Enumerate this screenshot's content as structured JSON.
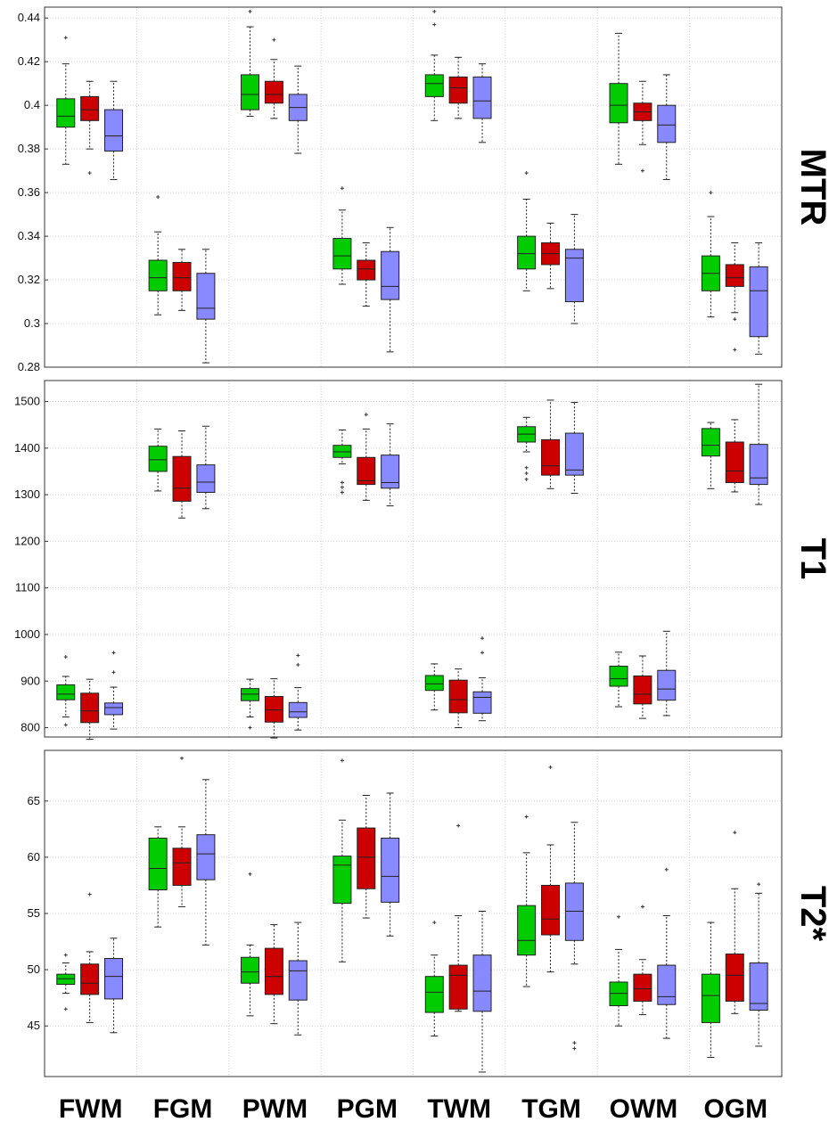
{
  "chart_data": [
    {
      "type": "box",
      "panel": "MTR",
      "row_label": "MTR",
      "categories": [
        "FWM",
        "FGM",
        "PWM",
        "PGM",
        "TWM",
        "TGM",
        "OWM",
        "OGM"
      ],
      "ylim": [
        0.28,
        0.445
      ],
      "yticks": [
        0.28,
        0.3,
        0.32,
        0.34,
        0.36,
        0.38,
        0.4,
        0.42,
        0.44
      ],
      "ytick_labels": [
        "0.28",
        "0.3",
        "0.32",
        "0.34",
        "0.36",
        "0.38",
        "0.4",
        "0.42",
        "0.44"
      ],
      "grid": true,
      "series": [
        {
          "color": "#00cc00",
          "boxes": [
            {
              "whisker_low": 0.373,
              "q1": 0.39,
              "median": 0.395,
              "q3": 0.403,
              "whisker_high": 0.419,
              "outliers": [
                0.431
              ]
            },
            {
              "whisker_low": 0.304,
              "q1": 0.315,
              "median": 0.321,
              "q3": 0.329,
              "whisker_high": 0.342,
              "outliers": [
                0.358
              ]
            },
            {
              "whisker_low": 0.395,
              "q1": 0.398,
              "median": 0.405,
              "q3": 0.414,
              "whisker_high": 0.436,
              "outliers": [
                0.443
              ]
            },
            {
              "whisker_low": 0.318,
              "q1": 0.325,
              "median": 0.331,
              "q3": 0.339,
              "whisker_high": 0.352,
              "outliers": [
                0.362
              ]
            },
            {
              "whisker_low": 0.393,
              "q1": 0.404,
              "median": 0.41,
              "q3": 0.414,
              "whisker_high": 0.423,
              "outliers": [
                0.437,
                0.443
              ]
            },
            {
              "whisker_low": 0.315,
              "q1": 0.325,
              "median": 0.332,
              "q3": 0.34,
              "whisker_high": 0.357,
              "outliers": [
                0.369
              ]
            },
            {
              "whisker_low": 0.373,
              "q1": 0.392,
              "median": 0.4,
              "q3": 0.41,
              "whisker_high": 0.433,
              "outliers": []
            },
            {
              "whisker_low": 0.303,
              "q1": 0.315,
              "median": 0.323,
              "q3": 0.331,
              "whisker_high": 0.349,
              "outliers": [
                0.36
              ]
            }
          ]
        },
        {
          "color": "#cc0000",
          "boxes": [
            {
              "whisker_low": 0.38,
              "q1": 0.393,
              "median": 0.398,
              "q3": 0.404,
              "whisker_high": 0.411,
              "outliers": [
                0.369
              ]
            },
            {
              "whisker_low": 0.306,
              "q1": 0.315,
              "median": 0.321,
              "q3": 0.328,
              "whisker_high": 0.334,
              "outliers": []
            },
            {
              "whisker_low": 0.394,
              "q1": 0.401,
              "median": 0.405,
              "q3": 0.411,
              "whisker_high": 0.421,
              "outliers": [
                0.43
              ]
            },
            {
              "whisker_low": 0.308,
              "q1": 0.32,
              "median": 0.325,
              "q3": 0.329,
              "whisker_high": 0.337,
              "outliers": []
            },
            {
              "whisker_low": 0.394,
              "q1": 0.401,
              "median": 0.408,
              "q3": 0.413,
              "whisker_high": 0.422,
              "outliers": []
            },
            {
              "whisker_low": 0.316,
              "q1": 0.327,
              "median": 0.332,
              "q3": 0.337,
              "whisker_high": 0.346,
              "outliers": []
            },
            {
              "whisker_low": 0.382,
              "q1": 0.393,
              "median": 0.397,
              "q3": 0.401,
              "whisker_high": 0.411,
              "outliers": [
                0.37
              ]
            },
            {
              "whisker_low": 0.305,
              "q1": 0.317,
              "median": 0.321,
              "q3": 0.327,
              "whisker_high": 0.337,
              "outliers": [
                0.302,
                0.288
              ]
            }
          ]
        },
        {
          "color": "#8888ff",
          "boxes": [
            {
              "whisker_low": 0.366,
              "q1": 0.379,
              "median": 0.386,
              "q3": 0.398,
              "whisker_high": 0.411,
              "outliers": []
            },
            {
              "whisker_low": 0.282,
              "q1": 0.302,
              "median": 0.307,
              "q3": 0.323,
              "whisker_high": 0.334,
              "outliers": []
            },
            {
              "whisker_low": 0.378,
              "q1": 0.393,
              "median": 0.399,
              "q3": 0.405,
              "whisker_high": 0.418,
              "outliers": []
            },
            {
              "whisker_low": 0.287,
              "q1": 0.311,
              "median": 0.317,
              "q3": 0.333,
              "whisker_high": 0.344,
              "outliers": []
            },
            {
              "whisker_low": 0.383,
              "q1": 0.394,
              "median": 0.402,
              "q3": 0.413,
              "whisker_high": 0.419,
              "outliers": []
            },
            {
              "whisker_low": 0.3,
              "q1": 0.31,
              "median": 0.33,
              "q3": 0.334,
              "whisker_high": 0.35,
              "outliers": []
            },
            {
              "whisker_low": 0.366,
              "q1": 0.383,
              "median": 0.391,
              "q3": 0.4,
              "whisker_high": 0.414,
              "outliers": []
            },
            {
              "whisker_low": 0.286,
              "q1": 0.294,
              "median": 0.315,
              "q3": 0.326,
              "whisker_high": 0.337,
              "outliers": []
            }
          ]
        }
      ]
    },
    {
      "type": "box",
      "panel": "T1",
      "row_label": "T1",
      "categories": [
        "FWM",
        "FGM",
        "PWM",
        "PGM",
        "TWM",
        "TGM",
        "OWM",
        "OGM"
      ],
      "ylim": [
        780,
        1545
      ],
      "yticks": [
        800,
        900,
        1000,
        1100,
        1200,
        1300,
        1400,
        1500
      ],
      "ytick_labels": [
        "800",
        "900",
        "1000",
        "1100",
        "1200",
        "1300",
        "1400",
        "1500"
      ],
      "grid": true,
      "series": [
        {
          "color": "#00cc00",
          "boxes": [
            {
              "whisker_low": 823,
              "q1": 860,
              "median": 872,
              "q3": 892,
              "whisker_high": 910,
              "outliers": [
                952,
                806
              ]
            },
            {
              "whisker_low": 1308,
              "q1": 1350,
              "median": 1375,
              "q3": 1404,
              "whisker_high": 1441,
              "outliers": []
            },
            {
              "whisker_low": 823,
              "q1": 858,
              "median": 872,
              "q3": 884,
              "whisker_high": 904,
              "outliers": [
                800
              ]
            },
            {
              "whisker_low": 1366,
              "q1": 1380,
              "median": 1392,
              "q3": 1406,
              "whisker_high": 1439,
              "outliers": [
                1326,
                1316,
                1305
              ]
            },
            {
              "whisker_low": 838,
              "q1": 880,
              "median": 894,
              "q3": 912,
              "whisker_high": 937,
              "outliers": []
            },
            {
              "whisker_low": 1392,
              "q1": 1413,
              "median": 1430,
              "q3": 1446,
              "whisker_high": 1466,
              "outliers": [
                1358,
                1346,
                1333
              ]
            },
            {
              "whisker_low": 845,
              "q1": 889,
              "median": 905,
              "q3": 932,
              "whisker_high": 962,
              "outliers": []
            },
            {
              "whisker_low": 1313,
              "q1": 1383,
              "median": 1406,
              "q3": 1442,
              "whisker_high": 1455,
              "outliers": []
            }
          ]
        },
        {
          "color": "#cc0000",
          "boxes": [
            {
              "whisker_low": 775,
              "q1": 811,
              "median": 836,
              "q3": 874,
              "whisker_high": 904,
              "outliers": []
            },
            {
              "whisker_low": 1250,
              "q1": 1286,
              "median": 1314,
              "q3": 1382,
              "whisker_high": 1437,
              "outliers": []
            },
            {
              "whisker_low": 778,
              "q1": 812,
              "median": 838,
              "q3": 867,
              "whisker_high": 905,
              "outliers": []
            },
            {
              "whisker_low": 1288,
              "q1": 1322,
              "median": 1330,
              "q3": 1380,
              "whisker_high": 1441,
              "outliers": [
                1472
              ]
            },
            {
              "whisker_low": 800,
              "q1": 832,
              "median": 860,
              "q3": 902,
              "whisker_high": 926,
              "outliers": []
            },
            {
              "whisker_low": 1313,
              "q1": 1342,
              "median": 1362,
              "q3": 1418,
              "whisker_high": 1503,
              "outliers": []
            },
            {
              "whisker_low": 820,
              "q1": 851,
              "median": 872,
              "q3": 911,
              "whisker_high": 954,
              "outliers": []
            },
            {
              "whisker_low": 1306,
              "q1": 1326,
              "median": 1351,
              "q3": 1413,
              "whisker_high": 1461,
              "outliers": []
            }
          ]
        },
        {
          "color": "#8888ff",
          "boxes": [
            {
              "whisker_low": 797,
              "q1": 828,
              "median": 843,
              "q3": 853,
              "whisker_high": 887,
              "outliers": [
                961,
                919
              ]
            },
            {
              "whisker_low": 1270,
              "q1": 1305,
              "median": 1327,
              "q3": 1364,
              "whisker_high": 1447,
              "outliers": []
            },
            {
              "whisker_low": 795,
              "q1": 822,
              "median": 834,
              "q3": 854,
              "whisker_high": 886,
              "outliers": [
                955,
                935
              ]
            },
            {
              "whisker_low": 1276,
              "q1": 1314,
              "median": 1326,
              "q3": 1385,
              "whisker_high": 1452,
              "outliers": []
            },
            {
              "whisker_low": 815,
              "q1": 831,
              "median": 865,
              "q3": 877,
              "whisker_high": 907,
              "outliers": [
                992,
                961
              ]
            },
            {
              "whisker_low": 1303,
              "q1": 1342,
              "median": 1353,
              "q3": 1432,
              "whisker_high": 1498,
              "outliers": []
            },
            {
              "whisker_low": 826,
              "q1": 859,
              "median": 883,
              "q3": 923,
              "whisker_high": 1007,
              "outliers": []
            },
            {
              "whisker_low": 1279,
              "q1": 1322,
              "median": 1336,
              "q3": 1408,
              "whisker_high": 1537,
              "outliers": []
            }
          ]
        }
      ]
    },
    {
      "type": "box",
      "panel": "T2*",
      "row_label": "T2*",
      "categories": [
        "FWM",
        "FGM",
        "PWM",
        "PGM",
        "TWM",
        "TGM",
        "OWM",
        "OGM"
      ],
      "ylim": [
        40.5,
        69.5
      ],
      "yticks": [
        45,
        50,
        55,
        60,
        65
      ],
      "ytick_labels": [
        "45",
        "50",
        "55",
        "60",
        "65"
      ],
      "grid": true,
      "series": [
        {
          "color": "#00cc00",
          "boxes": [
            {
              "whisker_low": 47.9,
              "q1": 48.7,
              "median": 49.2,
              "q3": 49.6,
              "whisker_high": 50.6,
              "outliers": [
                51.3,
                46.5
              ]
            },
            {
              "whisker_low": 53.8,
              "q1": 57.1,
              "median": 59.0,
              "q3": 61.7,
              "whisker_high": 62.7,
              "outliers": []
            },
            {
              "whisker_low": 45.9,
              "q1": 48.8,
              "median": 49.8,
              "q3": 51.1,
              "whisker_high": 52.2,
              "outliers": [
                58.5
              ]
            },
            {
              "whisker_low": 50.7,
              "q1": 55.9,
              "median": 59.3,
              "q3": 60.1,
              "whisker_high": 63.3,
              "outliers": [
                68.6
              ]
            },
            {
              "whisker_low": 44.1,
              "q1": 46.2,
              "median": 48.0,
              "q3": 49.4,
              "whisker_high": 51.3,
              "outliers": [
                54.2
              ]
            },
            {
              "whisker_low": 48.5,
              "q1": 51.3,
              "median": 52.6,
              "q3": 55.7,
              "whisker_high": 60.4,
              "outliers": [
                63.6
              ]
            },
            {
              "whisker_low": 45.0,
              "q1": 46.8,
              "median": 47.9,
              "q3": 48.9,
              "whisker_high": 51.8,
              "outliers": [
                54.7
              ]
            },
            {
              "whisker_low": 42.2,
              "q1": 45.3,
              "median": 47.7,
              "q3": 49.6,
              "whisker_high": 54.2,
              "outliers": []
            }
          ]
        },
        {
          "color": "#cc0000",
          "boxes": [
            {
              "whisker_low": 45.3,
              "q1": 47.8,
              "median": 48.8,
              "q3": 50.5,
              "whisker_high": 51.6,
              "outliers": [
                56.7
              ]
            },
            {
              "whisker_low": 55.6,
              "q1": 57.5,
              "median": 59.5,
              "q3": 60.8,
              "whisker_high": 62.7,
              "outliers": [
                68.8
              ]
            },
            {
              "whisker_low": 45.2,
              "q1": 47.8,
              "median": 49.4,
              "q3": 51.9,
              "whisker_high": 54.0,
              "outliers": []
            },
            {
              "whisker_low": 54.6,
              "q1": 57.2,
              "median": 60.0,
              "q3": 62.6,
              "whisker_high": 65.5,
              "outliers": []
            },
            {
              "whisker_low": 46.3,
              "q1": 46.5,
              "median": 49.5,
              "q3": 50.4,
              "whisker_high": 54.8,
              "outliers": [
                62.8
              ]
            },
            {
              "whisker_low": 49.8,
              "q1": 53.1,
              "median": 54.5,
              "q3": 57.5,
              "whisker_high": 61.1,
              "outliers": [
                68.0
              ]
            },
            {
              "whisker_low": 46.0,
              "q1": 47.2,
              "median": 48.3,
              "q3": 49.6,
              "whisker_high": 50.9,
              "outliers": [
                55.6
              ]
            },
            {
              "whisker_low": 46.1,
              "q1": 47.2,
              "median": 49.5,
              "q3": 51.4,
              "whisker_high": 57.2,
              "outliers": [
                62.2
              ]
            }
          ]
        },
        {
          "color": "#8888ff",
          "boxes": [
            {
              "whisker_low": 44.4,
              "q1": 47.4,
              "median": 49.4,
              "q3": 51.0,
              "whisker_high": 52.8,
              "outliers": []
            },
            {
              "whisker_low": 52.2,
              "q1": 58.0,
              "median": 60.3,
              "q3": 62.0,
              "whisker_high": 66.9,
              "outliers": []
            },
            {
              "whisker_low": 44.2,
              "q1": 47.3,
              "median": 49.9,
              "q3": 50.8,
              "whisker_high": 54.2,
              "outliers": []
            },
            {
              "whisker_low": 53.0,
              "q1": 56.0,
              "median": 58.3,
              "q3": 61.7,
              "whisker_high": 65.7,
              "outliers": []
            },
            {
              "whisker_low": 40.9,
              "q1": 46.3,
              "median": 48.1,
              "q3": 51.3,
              "whisker_high": 55.2,
              "outliers": []
            },
            {
              "whisker_low": 50.5,
              "q1": 52.6,
              "median": 55.2,
              "q3": 57.7,
              "whisker_high": 63.1,
              "outliers": [
                43.5,
                43.0
              ]
            },
            {
              "whisker_low": 43.9,
              "q1": 46.9,
              "median": 47.6,
              "q3": 50.4,
              "whisker_high": 54.8,
              "outliers": [
                58.9
              ]
            },
            {
              "whisker_low": 43.2,
              "q1": 46.4,
              "median": 47.0,
              "q3": 50.6,
              "whisker_high": 56.8,
              "outliers": [
                57.6
              ]
            }
          ]
        }
      ]
    }
  ]
}
